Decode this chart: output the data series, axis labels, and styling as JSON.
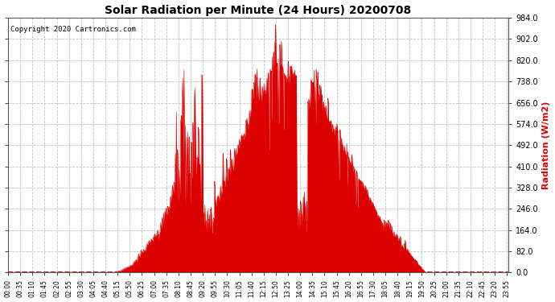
{
  "title": "Solar Radiation per Minute (24 Hours) 20200708",
  "ylabel": "Radiation (W/m2)",
  "copyright": "Copyright 2020 Cartronics.com",
  "fill_color": "#dd0000",
  "line_color": "#dd0000",
  "background_color": "#ffffff",
  "grid_color": "#bbbbbb",
  "dashed_zero_color": "#dd0000",
  "ylabel_color": "#dd0000",
  "title_color": "#000000",
  "copyright_color": "#000000",
  "ylim": [
    0.0,
    984.0
  ],
  "yticks": [
    0.0,
    82.0,
    164.0,
    246.0,
    328.0,
    410.0,
    492.0,
    574.0,
    656.0,
    738.0,
    820.0,
    902.0,
    984.0
  ],
  "total_minutes": 1440,
  "xtick_interval": 35,
  "figsize": [
    6.9,
    3.75
  ],
  "dpi": 100
}
